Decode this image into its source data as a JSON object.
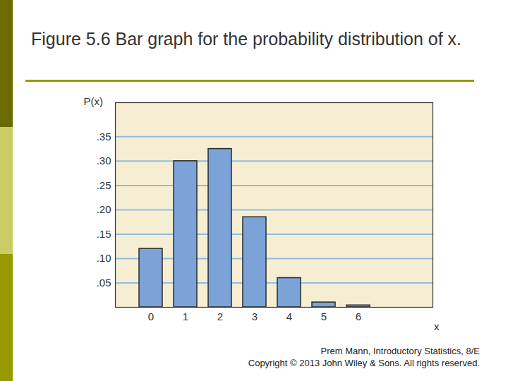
{
  "chart_data": {
    "type": "bar",
    "title": "Figure 5.6 Bar graph for the probability distribution of x.",
    "x_label": "x",
    "y_label": "P(x)",
    "categories": [
      "0",
      "1",
      "2",
      "3",
      "4",
      "5",
      "6"
    ],
    "values": [
      0.12,
      0.3,
      0.325,
      0.185,
      0.06,
      0.01,
      0.004
    ],
    "color": "#7ba3d8",
    "ylim": [
      0,
      0.42
    ],
    "yticks": [
      {
        "value": 0.05,
        "label": ".05"
      },
      {
        "value": 0.1,
        "label": ".10"
      },
      {
        "value": 0.15,
        "label": ".15"
      },
      {
        "value": 0.2,
        "label": ".20"
      },
      {
        "value": 0.25,
        "label": ".25"
      },
      {
        "value": 0.3,
        "label": ".30"
      },
      {
        "value": 0.35,
        "label": ".35"
      }
    ],
    "grid": true,
    "annotations": [
      "Prem Mann, Introductory Statistics, 8/E",
      "Copyright © 2013 John Wiley & Sons. All rights reserved."
    ]
  }
}
